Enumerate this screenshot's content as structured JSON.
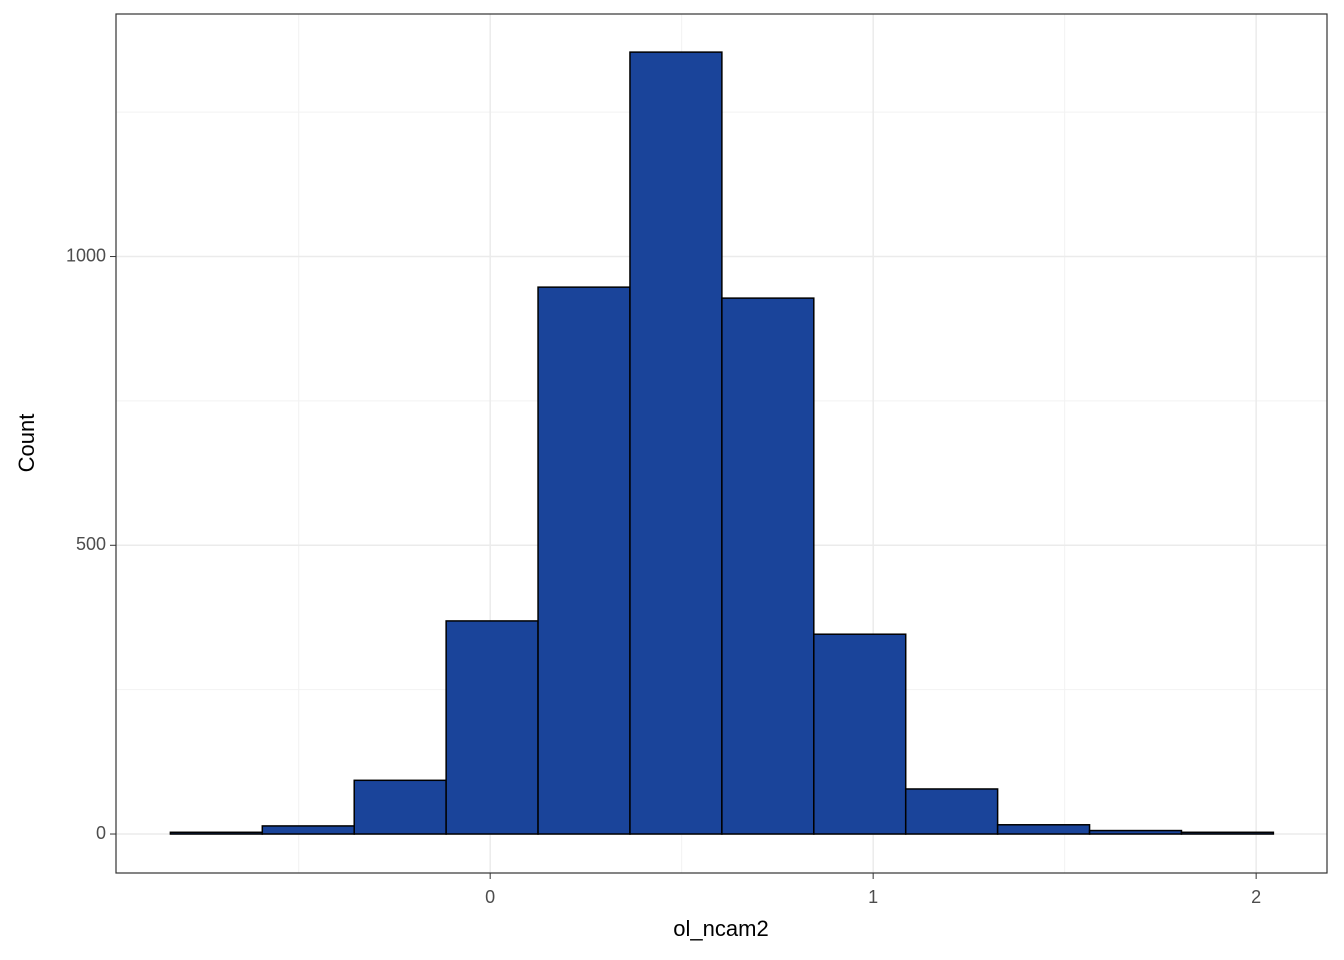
{
  "chart_data": {
    "type": "histogram",
    "x_label": "ol_ncam2",
    "y_label": "Count",
    "bins": [
      -0.835,
      -0.595,
      -0.355,
      -0.115,
      0.125,
      0.365,
      0.605,
      0.845,
      1.085,
      1.325,
      1.565,
      1.805,
      2.045
    ],
    "counts": [
      3,
      14,
      93,
      369,
      947,
      1354,
      928,
      346,
      78,
      16,
      6,
      3
    ],
    "color": "#1a449a",
    "edge_color": "#000000",
    "xlim": [
      -0.977,
      2.185
    ],
    "ylim": [
      -67.5,
      1420
    ],
    "xticks": [
      0,
      1,
      2
    ],
    "yticks": [
      0,
      500,
      1000
    ],
    "minor_xticks": [
      -0.5,
      0.5,
      1.5
    ],
    "minor_yticks": [
      250,
      750,
      1250
    ],
    "grid": true
  }
}
